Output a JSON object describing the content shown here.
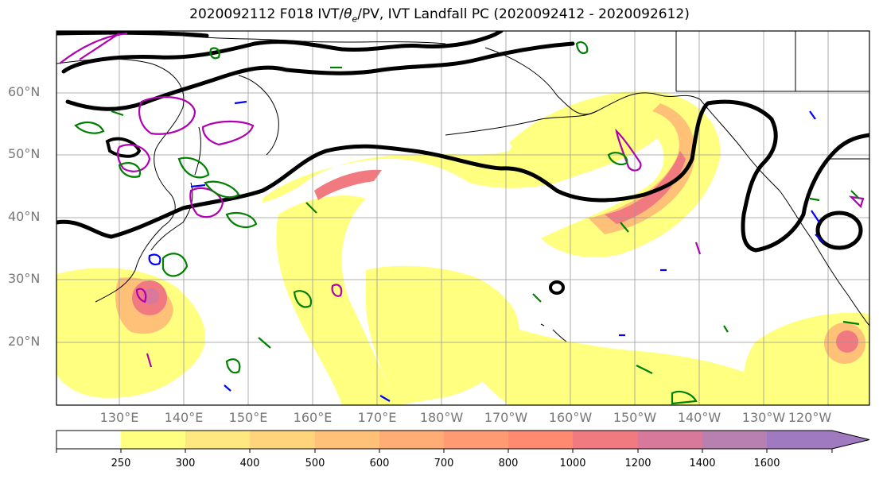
{
  "title_prefix": "2020092112 F018 IVT/",
  "title_theta": "θ",
  "title_theta_sub": "e",
  "title_suffix": "/PV, IVT Landfall PC (2020092412 - 2020092612)",
  "lat_labels": [
    "60°N",
    "50°N",
    "40°N",
    "30°N",
    "20°N"
  ],
  "lon_labels": [
    "130°E",
    "140°E",
    "150°E",
    "160°E",
    "170°E",
    "180°W",
    "170°W",
    "160°W",
    "150°W",
    "140°W",
    "130°W",
    "120°W"
  ],
  "colorbar": {
    "ticks": [
      "250",
      "300",
      "400",
      "500",
      "600",
      "700",
      "800",
      "1000",
      "1200",
      "1400",
      "1600"
    ],
    "colors": [
      "#ffffff",
      "#ffff80",
      "#ffe880",
      "#ffd47a",
      "#ffc078",
      "#ffad75",
      "#ff9a73",
      "#ff8a70",
      "#f07a80",
      "#d8789a",
      "#b880b0",
      "#a07ac0"
    ]
  },
  "colors": {
    "ivt_low": "#ffff80",
    "ivt_mid": "#ffc078",
    "ivt_high": "#f07a80",
    "theta_contour": "#000000",
    "pv_positive": "#b000b0",
    "pv_negative": "#0000ff",
    "green_contour": "#008000",
    "coastline": "#000000"
  }
}
